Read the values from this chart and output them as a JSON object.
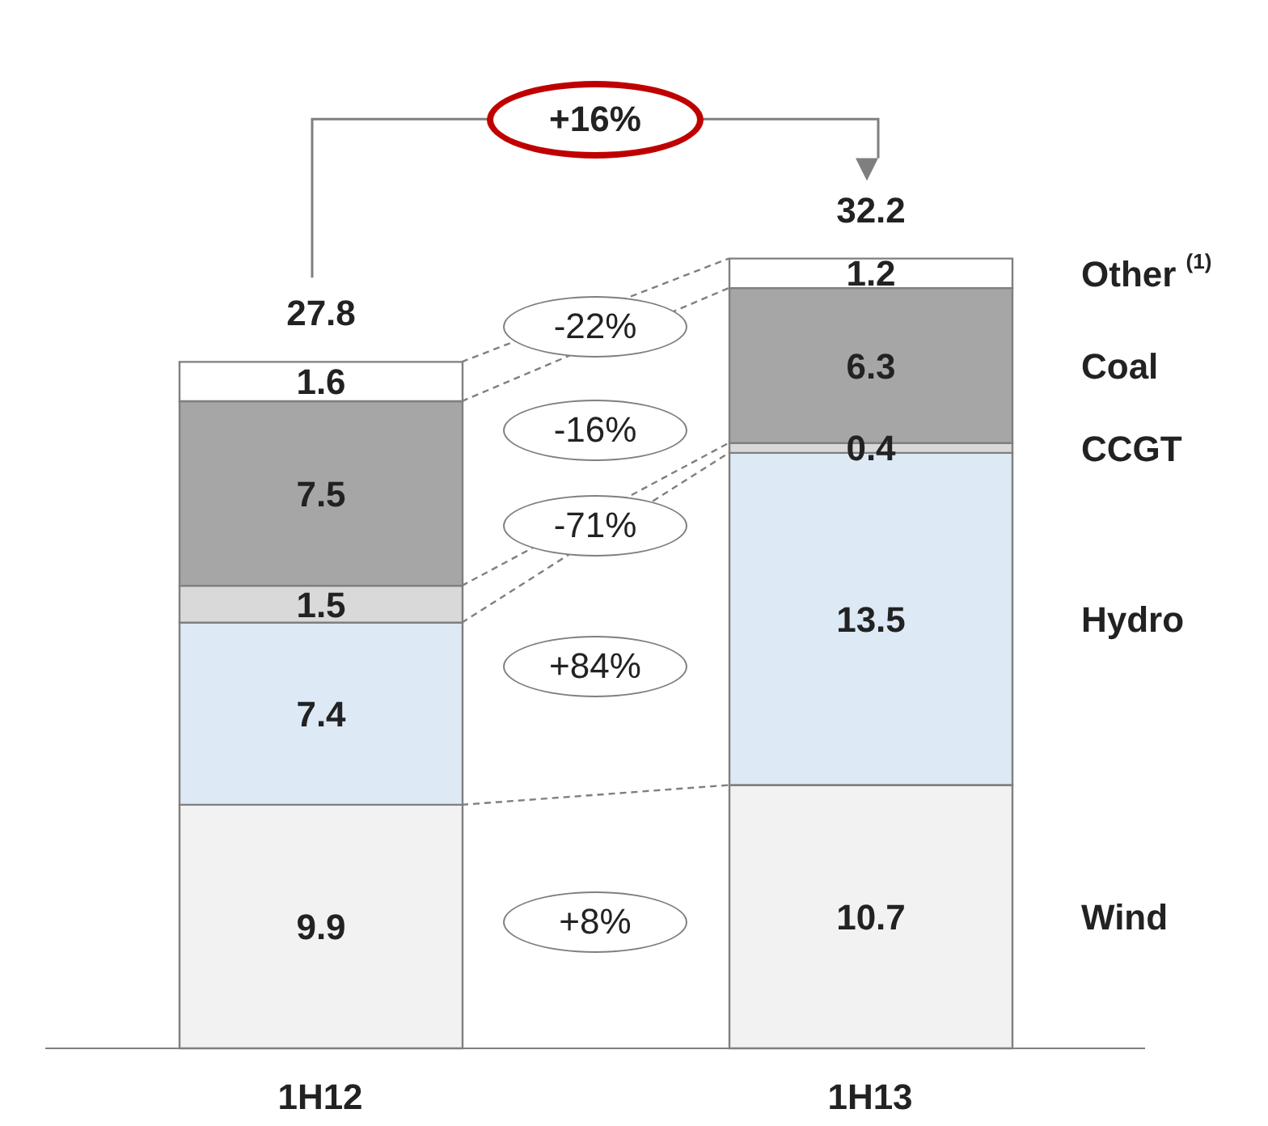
{
  "chart_data": {
    "type": "bar",
    "stacked": true,
    "categories": [
      "1H12",
      "1H13"
    ],
    "series": [
      {
        "name": "Wind",
        "color": "#f2f2f2",
        "values": [
          9.9,
          10.7
        ]
      },
      {
        "name": "Hydro",
        "color": "#dde9f4",
        "values": [
          7.4,
          13.5
        ]
      },
      {
        "name": "CCGT",
        "color": "#d9d9d9",
        "values": [
          1.5,
          0.4
        ]
      },
      {
        "name": "Coal",
        "color": "#a6a6a6",
        "values": [
          7.5,
          6.3
        ]
      },
      {
        "name": "Other $^{(1)}$",
        "color": "#ffffff",
        "values": [
          1.6,
          1.2
        ]
      }
    ],
    "data_labels": true,
    "totals": [
      "27.8",
      "32.2"
    ],
    "annotations": [
      "+16%",
      "-22%",
      "-16%",
      "-71%",
      "+84%",
      "+8%"
    ]
  }
}
